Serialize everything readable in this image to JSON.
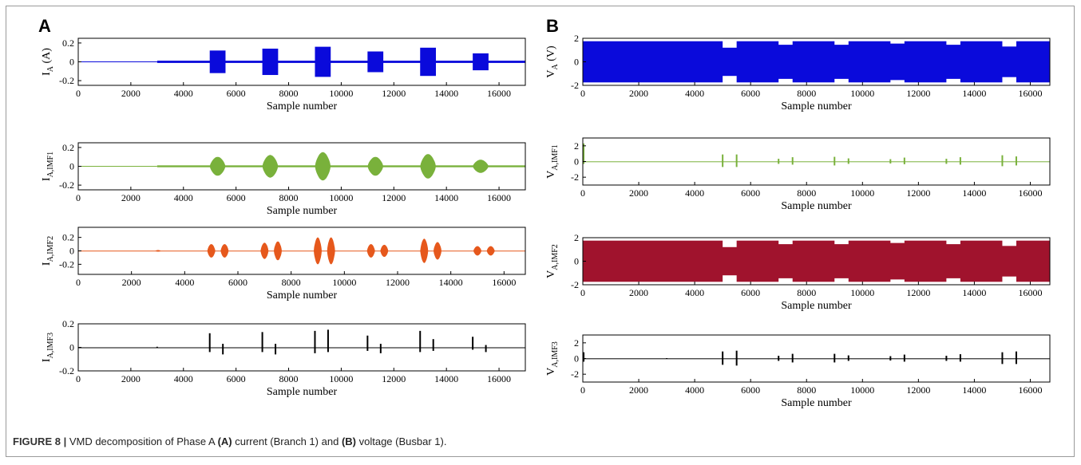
{
  "panels": [
    {
      "letter": "A"
    },
    {
      "letter": "B"
    }
  ],
  "caption": {
    "label": "FIGURE 8 |",
    "t1": "VMD decomposition of Phase A",
    "ref_a": "(A)",
    "t2": "current (Branch 1) and",
    "ref_b": "(B)",
    "t3": "voltage (Busbar 1)."
  },
  "chart_data": [
    {
      "type": "line",
      "panel": "A",
      "ylabel_main": "I",
      "ylabel_sub": "A",
      "ylabel_suffix": " (A)",
      "xlabel": "Sample number",
      "xlim": [
        0,
        17000
      ],
      "ylim": [
        -0.25,
        0.25
      ],
      "xticks": [
        0,
        2000,
        4000,
        6000,
        8000,
        10000,
        12000,
        14000,
        16000
      ],
      "xtick_labels": [
        "0",
        "2000",
        "4000",
        "6000",
        "8000",
        "10000",
        "12000",
        "14000",
        "16000"
      ],
      "yticks": [
        -0.2,
        0,
        0.2
      ],
      "ytick_labels": [
        "-0.2",
        "0",
        "0.2"
      ],
      "color": "#0a0adb",
      "baseline": [
        {
          "x": [
            0,
            3000
          ],
          "amp": 0.004
        },
        {
          "x": [
            3000,
            17000
          ],
          "amp": 0.012
        }
      ],
      "blocks": [
        {
          "x": [
            5000,
            5600
          ],
          "amp": 0.12
        },
        {
          "x": [
            7000,
            7600
          ],
          "amp": 0.14
        },
        {
          "x": [
            9000,
            9600
          ],
          "amp": 0.16
        },
        {
          "x": [
            11000,
            11600
          ],
          "amp": 0.11
        },
        {
          "x": [
            13000,
            13600
          ],
          "amp": 0.15
        },
        {
          "x": [
            15000,
            15600
          ],
          "amp": 0.09
        }
      ],
      "bursts": [],
      "spikes": []
    },
    {
      "type": "line",
      "panel": "A",
      "ylabel_main": "I",
      "ylabel_sub": "A,IMF1",
      "ylabel_suffix": "",
      "xlabel": "Sample number",
      "xlim": [
        0,
        17000
      ],
      "ylim": [
        -0.25,
        0.25
      ],
      "xticks": [
        0,
        2000,
        4000,
        6000,
        8000,
        10000,
        12000,
        14000,
        16000
      ],
      "xtick_labels": [
        "0",
        "2000",
        "4000",
        "6000",
        "8000",
        "10000",
        "12000",
        "14000",
        "16000"
      ],
      "yticks": [
        -0.2,
        0,
        0.2
      ],
      "ytick_labels": [
        "-0.2",
        "0",
        "0.2"
      ],
      "color": "#79b13b",
      "baseline": [
        {
          "x": [
            0,
            3000
          ],
          "amp": 0.004
        },
        {
          "x": [
            3000,
            17000
          ],
          "amp": 0.01
        }
      ],
      "blocks": [],
      "bursts": [
        {
          "x": [
            5000,
            5600
          ],
          "amp": 0.1
        },
        {
          "x": [
            7000,
            7600
          ],
          "amp": 0.12
        },
        {
          "x": [
            9000,
            9600
          ],
          "amp": 0.15
        },
        {
          "x": [
            11000,
            11600
          ],
          "amp": 0.1
        },
        {
          "x": [
            13000,
            13600
          ],
          "amp": 0.13
        },
        {
          "x": [
            15000,
            15600
          ],
          "amp": 0.07
        }
      ],
      "spikes": []
    },
    {
      "type": "line",
      "panel": "A",
      "ylabel_main": "I",
      "ylabel_sub": "A,IMF2",
      "ylabel_suffix": "",
      "xlabel": "Sample number",
      "xlim": [
        0,
        16800
      ],
      "ylim": [
        -0.35,
        0.35
      ],
      "xticks": [
        0,
        2000,
        4000,
        6000,
        8000,
        10000,
        12000,
        14000,
        16000
      ],
      "xtick_labels": [
        "0",
        "2000",
        "4000",
        "6000",
        "8000",
        "10000",
        "12000",
        "14000",
        "16000"
      ],
      "yticks": [
        -0.2,
        0,
        0.2
      ],
      "ytick_labels": [
        "-0.2",
        "0",
        "0.2"
      ],
      "color": "#e6581c",
      "baseline": [
        {
          "x": [
            0,
            16800
          ],
          "amp": 0.003
        }
      ],
      "blocks": [],
      "bursts": [
        {
          "x": [
            2900,
            3100
          ],
          "amp": 0.012
        },
        {
          "x": [
            4850,
            5150
          ],
          "amp": 0.1
        },
        {
          "x": [
            5350,
            5650
          ],
          "amp": 0.1
        },
        {
          "x": [
            6850,
            7150
          ],
          "amp": 0.12
        },
        {
          "x": [
            7350,
            7650
          ],
          "amp": 0.14
        },
        {
          "x": [
            8850,
            9150
          ],
          "amp": 0.2
        },
        {
          "x": [
            9350,
            9650
          ],
          "amp": 0.2
        },
        {
          "x": [
            10850,
            11150
          ],
          "amp": 0.1
        },
        {
          "x": [
            11350,
            11650
          ],
          "amp": 0.09
        },
        {
          "x": [
            12850,
            13150
          ],
          "amp": 0.18
        },
        {
          "x": [
            13350,
            13650
          ],
          "amp": 0.13
        },
        {
          "x": [
            14850,
            15150
          ],
          "amp": 0.07
        },
        {
          "x": [
            15350,
            15650
          ],
          "amp": 0.07
        }
      ],
      "spikes": []
    },
    {
      "type": "line",
      "panel": "A",
      "ylabel_main": "I",
      "ylabel_sub": "A,IMF3",
      "ylabel_suffix": "",
      "xlabel": "Sample number",
      "xlim": [
        0,
        17000
      ],
      "ylim": [
        -0.2,
        0.2
      ],
      "xticks": [
        0,
        2000,
        4000,
        6000,
        8000,
        10000,
        12000,
        14000,
        16000
      ],
      "xtick_labels": [
        "0",
        "2000",
        "4000",
        "6000",
        "8000",
        "10000",
        "12000",
        "14000",
        "16000"
      ],
      "yticks": [
        -0.2,
        0,
        0.2
      ],
      "ytick_labels": [
        "-0.2",
        "0",
        "0.2"
      ],
      "color": "#000000",
      "baseline": [
        {
          "x": [
            0,
            17000
          ],
          "amp": 0.0
        }
      ],
      "blocks": [],
      "bursts": [],
      "spikes": [
        {
          "x": 3000,
          "up": 0.005,
          "down": 0.005
        },
        {
          "x": 5000,
          "up": 0.12,
          "down": 0.04
        },
        {
          "x": 5500,
          "up": 0.03,
          "down": 0.06
        },
        {
          "x": 7000,
          "up": 0.13,
          "down": 0.04
        },
        {
          "x": 7500,
          "up": 0.03,
          "down": 0.06
        },
        {
          "x": 9000,
          "up": 0.14,
          "down": 0.05
        },
        {
          "x": 9500,
          "up": 0.15,
          "down": 0.04
        },
        {
          "x": 11000,
          "up": 0.1,
          "down": 0.03
        },
        {
          "x": 11500,
          "up": 0.03,
          "down": 0.05
        },
        {
          "x": 13000,
          "up": 0.14,
          "down": 0.04
        },
        {
          "x": 13500,
          "up": 0.07,
          "down": 0.03
        },
        {
          "x": 15000,
          "up": 0.09,
          "down": 0.02
        },
        {
          "x": 15500,
          "up": 0.02,
          "down": 0.04
        }
      ]
    },
    {
      "type": "line",
      "panel": "B",
      "ylabel_main": "V",
      "ylabel_sub": "A",
      "ylabel_suffix": " (V)",
      "xlabel": "Sample number",
      "xlim": [
        0,
        16700
      ],
      "ylim": [
        -2,
        2
      ],
      "xticks": [
        0,
        2000,
        4000,
        6000,
        8000,
        10000,
        12000,
        14000,
        16000
      ],
      "xtick_labels": [
        "0",
        "2000",
        "4000",
        "6000",
        "8000",
        "10000",
        "12000",
        "14000",
        "16000"
      ],
      "yticks": [
        -2,
        0,
        2
      ],
      "ytick_labels": [
        "-2",
        "0",
        "2"
      ],
      "color": "#0a0adb",
      "baseline": [
        {
          "x": [
            0,
            16700
          ],
          "amp": 1.75
        }
      ],
      "blocks": [
        {
          "x": [
            5000,
            5500
          ],
          "amp": 1.2,
          "dip": true
        },
        {
          "x": [
            7000,
            7500
          ],
          "amp": 1.45,
          "dip": true
        },
        {
          "x": [
            9000,
            9500
          ],
          "amp": 1.45,
          "dip": true
        },
        {
          "x": [
            11000,
            11500
          ],
          "amp": 1.55,
          "dip": true
        },
        {
          "x": [
            13000,
            13500
          ],
          "amp": 1.45,
          "dip": true
        },
        {
          "x": [
            15000,
            15500
          ],
          "amp": 1.3,
          "dip": true
        }
      ],
      "bursts": [],
      "spikes": []
    },
    {
      "type": "line",
      "panel": "B",
      "ylabel_main": "V",
      "ylabel_sub": "A,IMF1",
      "ylabel_suffix": "",
      "xlabel": "Sample number",
      "xlim": [
        0,
        16700
      ],
      "ylim": [
        -3,
        3
      ],
      "xticks": [
        0,
        2000,
        4000,
        6000,
        8000,
        10000,
        12000,
        14000,
        16000
      ],
      "xtick_labels": [
        "0",
        "2000",
        "4000",
        "6000",
        "8000",
        "10000",
        "12000",
        "14000",
        "16000"
      ],
      "yticks": [
        -2,
        0,
        2
      ],
      "ytick_labels": [
        "-2",
        "0",
        "2"
      ],
      "color": "#79b13b",
      "baseline": [
        {
          "x": [
            0,
            16700
          ],
          "amp": 0.02
        }
      ],
      "blocks": [],
      "bursts": [],
      "spikes": [
        {
          "x": 30,
          "up": 2.3,
          "down": 0.3
        },
        {
          "x": 5000,
          "up": 0.9,
          "down": 0.7
        },
        {
          "x": 5500,
          "up": 0.9,
          "down": 0.7
        },
        {
          "x": 7000,
          "up": 0.35,
          "down": 0.3
        },
        {
          "x": 7500,
          "up": 0.55,
          "down": 0.4
        },
        {
          "x": 9000,
          "up": 0.6,
          "down": 0.5
        },
        {
          "x": 9500,
          "up": 0.4,
          "down": 0.3
        },
        {
          "x": 11000,
          "up": 0.3,
          "down": 0.25
        },
        {
          "x": 11500,
          "up": 0.5,
          "down": 0.35
        },
        {
          "x": 13000,
          "up": 0.35,
          "down": 0.3
        },
        {
          "x": 13500,
          "up": 0.55,
          "down": 0.4
        },
        {
          "x": 15000,
          "up": 0.8,
          "down": 0.6
        },
        {
          "x": 15500,
          "up": 0.65,
          "down": 0.5
        }
      ]
    },
    {
      "type": "line",
      "panel": "B",
      "ylabel_main": "V",
      "ylabel_sub": "A,IMF2",
      "ylabel_suffix": "",
      "xlabel": "Sample number",
      "xlim": [
        0,
        16700
      ],
      "ylim": [
        -2,
        2
      ],
      "xticks": [
        0,
        2000,
        4000,
        6000,
        8000,
        10000,
        12000,
        14000,
        16000
      ],
      "xtick_labels": [
        "0",
        "2000",
        "4000",
        "6000",
        "8000",
        "10000",
        "12000",
        "14000",
        "16000"
      ],
      "yticks": [
        -2,
        0,
        2
      ],
      "ytick_labels": [
        "-2",
        "0",
        "2"
      ],
      "color": "#a0132d",
      "baseline": [
        {
          "x": [
            0,
            16700
          ],
          "amp": 1.75
        }
      ],
      "blocks": [
        {
          "x": [
            5000,
            5500
          ],
          "amp": 1.2,
          "dip": true
        },
        {
          "x": [
            7000,
            7500
          ],
          "amp": 1.45,
          "dip": true
        },
        {
          "x": [
            9000,
            9500
          ],
          "amp": 1.45,
          "dip": true
        },
        {
          "x": [
            11000,
            11500
          ],
          "amp": 1.55,
          "dip": true
        },
        {
          "x": [
            13000,
            13500
          ],
          "amp": 1.45,
          "dip": true
        },
        {
          "x": [
            15000,
            15500
          ],
          "amp": 1.3,
          "dip": true
        }
      ],
      "bursts": [],
      "spikes": []
    },
    {
      "type": "line",
      "panel": "B",
      "ylabel_main": "V",
      "ylabel_sub": "A,IMF3",
      "ylabel_suffix": "",
      "xlabel": "Sample number",
      "xlim": [
        0,
        16700
      ],
      "ylim": [
        -3,
        3
      ],
      "xticks": [
        0,
        2000,
        4000,
        6000,
        8000,
        10000,
        12000,
        14000,
        16000
      ],
      "xtick_labels": [
        "0",
        "2000",
        "4000",
        "6000",
        "8000",
        "10000",
        "12000",
        "14000",
        "16000"
      ],
      "yticks": [
        -2,
        0,
        2
      ],
      "ytick_labels": [
        "-2",
        "0",
        "2"
      ],
      "color": "#000000",
      "baseline": [
        {
          "x": [
            0,
            16700
          ],
          "amp": 0.02
        }
      ],
      "blocks": [],
      "bursts": [],
      "spikes": [
        {
          "x": 30,
          "up": 0.8,
          "down": 0.4
        },
        {
          "x": 3000,
          "up": 0.05,
          "down": 0.05
        },
        {
          "x": 5000,
          "up": 0.9,
          "down": 0.8
        },
        {
          "x": 5500,
          "up": 1.0,
          "down": 0.9
        },
        {
          "x": 7000,
          "up": 0.35,
          "down": 0.3
        },
        {
          "x": 7500,
          "up": 0.6,
          "down": 0.5
        },
        {
          "x": 9000,
          "up": 0.6,
          "down": 0.5
        },
        {
          "x": 9500,
          "up": 0.4,
          "down": 0.3
        },
        {
          "x": 11000,
          "up": 0.3,
          "down": 0.25
        },
        {
          "x": 11500,
          "up": 0.5,
          "down": 0.4
        },
        {
          "x": 13000,
          "up": 0.35,
          "down": 0.3
        },
        {
          "x": 13500,
          "up": 0.55,
          "down": 0.4
        },
        {
          "x": 15000,
          "up": 0.8,
          "down": 0.7
        },
        {
          "x": 15500,
          "up": 0.9,
          "down": 0.7
        }
      ]
    }
  ]
}
